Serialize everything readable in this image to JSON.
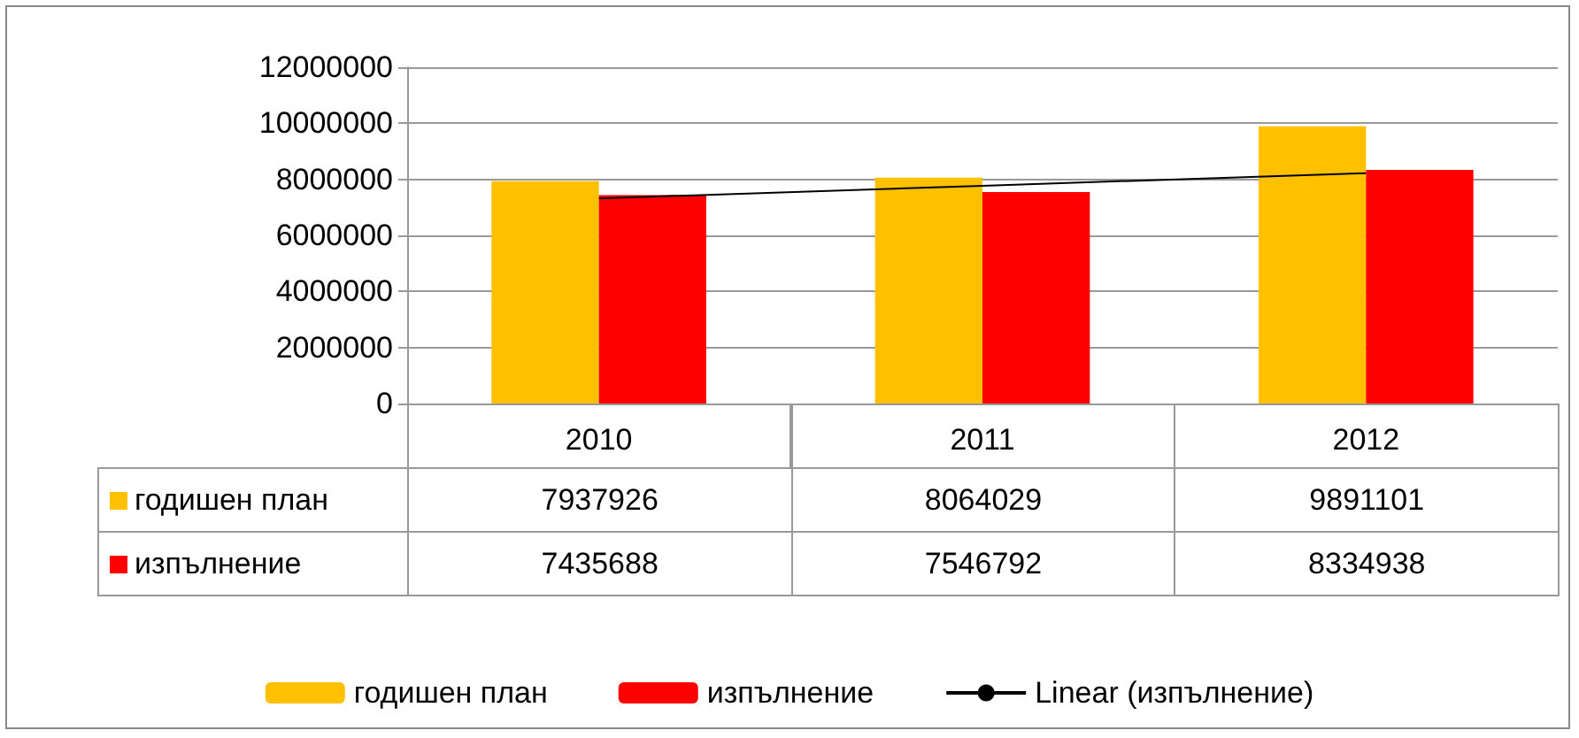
{
  "chart_data": {
    "type": "bar",
    "categories": [
      "2010",
      "2011",
      "2012"
    ],
    "series": [
      {
        "name": "годишен план",
        "color": "#ffc000",
        "values": [
          7937926,
          8064029,
          9891101
        ],
        "value_labels": [
          "7937926",
          "8064029",
          "9891101"
        ]
      },
      {
        "name": "изпълнение",
        "color": "#ff0000",
        "values": [
          7435688,
          7546792,
          8334938
        ],
        "value_labels": [
          "7435688",
          "7546792",
          "8334938"
        ]
      },
      {
        "name": "Linear (изпълнение)",
        "type": "line",
        "color": "#000000",
        "values": [
          7320000,
          7770000,
          8220000
        ],
        "marker": "none"
      }
    ],
    "ylim": [
      0,
      12000000
    ],
    "yticks": [
      0,
      2000000,
      4000000,
      6000000,
      8000000,
      10000000,
      12000000
    ],
    "grid": "y",
    "legend": "bottom"
  }
}
